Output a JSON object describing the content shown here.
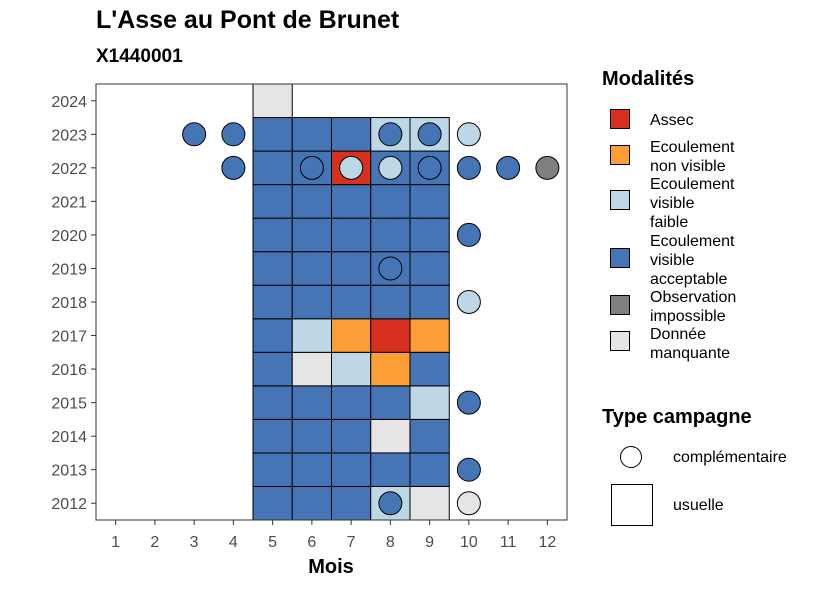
{
  "title": "L'Asse au Pont de Brunet",
  "subtitle": "X1440001",
  "legend": {
    "modalites_title": "Modalités",
    "modalites": [
      {
        "key": "assec",
        "label": "Assec",
        "color": "#d7301f"
      },
      {
        "key": "nonvisible",
        "label": "Ecoulement\nnon visible",
        "color": "#fd9d35"
      },
      {
        "key": "faible",
        "label": "Ecoulement\nvisible\nfaible",
        "color": "#bdd7e7"
      },
      {
        "key": "acceptable",
        "label": "Ecoulement\nvisible\nacceptable",
        "color": "#4575b4"
      },
      {
        "key": "impossible",
        "label": "Observation\nimpossible",
        "color": "#7f7f7f"
      },
      {
        "key": "manquante",
        "label": "Donnée\nmanquante",
        "color": "#e5e5e5"
      }
    ],
    "type_title": "Type campagne",
    "types": [
      {
        "key": "complementaire",
        "label": "complémentaire"
      },
      {
        "key": "usuelle",
        "label": "usuelle"
      }
    ]
  },
  "chart_data": {
    "type": "heatmap",
    "title": "L'Asse au Pont de Brunet",
    "subtitle": "X1440001",
    "xlabel": "Mois",
    "ylabel": "",
    "x_ticks": [
      1,
      2,
      3,
      4,
      5,
      6,
      7,
      8,
      9,
      10,
      11,
      12
    ],
    "y_ticks": [
      2012,
      2013,
      2014,
      2015,
      2016,
      2017,
      2018,
      2019,
      2020,
      2021,
      2022,
      2023,
      2024
    ],
    "xlim": [
      0.5,
      12.5
    ],
    "ylim": [
      2011.5,
      2024.5
    ],
    "grid": false,
    "usuelle": [
      {
        "year": 2012,
        "month": 5,
        "modalite": "acceptable"
      },
      {
        "year": 2012,
        "month": 6,
        "modalite": "acceptable"
      },
      {
        "year": 2012,
        "month": 7,
        "modalite": "acceptable"
      },
      {
        "year": 2012,
        "month": 8,
        "modalite": "faible"
      },
      {
        "year": 2012,
        "month": 9,
        "modalite": "manquante"
      },
      {
        "year": 2013,
        "month": 5,
        "modalite": "acceptable"
      },
      {
        "year": 2013,
        "month": 6,
        "modalite": "acceptable"
      },
      {
        "year": 2013,
        "month": 7,
        "modalite": "acceptable"
      },
      {
        "year": 2013,
        "month": 8,
        "modalite": "acceptable"
      },
      {
        "year": 2013,
        "month": 9,
        "modalite": "acceptable"
      },
      {
        "year": 2014,
        "month": 5,
        "modalite": "acceptable"
      },
      {
        "year": 2014,
        "month": 6,
        "modalite": "acceptable"
      },
      {
        "year": 2014,
        "month": 7,
        "modalite": "acceptable"
      },
      {
        "year": 2014,
        "month": 8,
        "modalite": "manquante"
      },
      {
        "year": 2014,
        "month": 9,
        "modalite": "acceptable"
      },
      {
        "year": 2015,
        "month": 5,
        "modalite": "acceptable"
      },
      {
        "year": 2015,
        "month": 6,
        "modalite": "acceptable"
      },
      {
        "year": 2015,
        "month": 7,
        "modalite": "acceptable"
      },
      {
        "year": 2015,
        "month": 8,
        "modalite": "acceptable"
      },
      {
        "year": 2015,
        "month": 9,
        "modalite": "faible"
      },
      {
        "year": 2016,
        "month": 5,
        "modalite": "acceptable"
      },
      {
        "year": 2016,
        "month": 6,
        "modalite": "manquante"
      },
      {
        "year": 2016,
        "month": 7,
        "modalite": "faible"
      },
      {
        "year": 2016,
        "month": 8,
        "modalite": "nonvisible"
      },
      {
        "year": 2016,
        "month": 9,
        "modalite": "acceptable"
      },
      {
        "year": 2017,
        "month": 5,
        "modalite": "acceptable"
      },
      {
        "year": 2017,
        "month": 6,
        "modalite": "faible"
      },
      {
        "year": 2017,
        "month": 7,
        "modalite": "nonvisible"
      },
      {
        "year": 2017,
        "month": 8,
        "modalite": "assec"
      },
      {
        "year": 2017,
        "month": 9,
        "modalite": "nonvisible"
      },
      {
        "year": 2018,
        "month": 5,
        "modalite": "acceptable"
      },
      {
        "year": 2018,
        "month": 6,
        "modalite": "acceptable"
      },
      {
        "year": 2018,
        "month": 7,
        "modalite": "acceptable"
      },
      {
        "year": 2018,
        "month": 8,
        "modalite": "acceptable"
      },
      {
        "year": 2018,
        "month": 9,
        "modalite": "acceptable"
      },
      {
        "year": 2019,
        "month": 5,
        "modalite": "acceptable"
      },
      {
        "year": 2019,
        "month": 6,
        "modalite": "acceptable"
      },
      {
        "year": 2019,
        "month": 7,
        "modalite": "acceptable"
      },
      {
        "year": 2019,
        "month": 8,
        "modalite": "acceptable"
      },
      {
        "year": 2019,
        "month": 9,
        "modalite": "acceptable"
      },
      {
        "year": 2020,
        "month": 5,
        "modalite": "acceptable"
      },
      {
        "year": 2020,
        "month": 6,
        "modalite": "acceptable"
      },
      {
        "year": 2020,
        "month": 7,
        "modalite": "acceptable"
      },
      {
        "year": 2020,
        "month": 8,
        "modalite": "acceptable"
      },
      {
        "year": 2020,
        "month": 9,
        "modalite": "acceptable"
      },
      {
        "year": 2021,
        "month": 5,
        "modalite": "acceptable"
      },
      {
        "year": 2021,
        "month": 6,
        "modalite": "acceptable"
      },
      {
        "year": 2021,
        "month": 7,
        "modalite": "acceptable"
      },
      {
        "year": 2021,
        "month": 8,
        "modalite": "acceptable"
      },
      {
        "year": 2021,
        "month": 9,
        "modalite": "acceptable"
      },
      {
        "year": 2022,
        "month": 5,
        "modalite": "acceptable"
      },
      {
        "year": 2022,
        "month": 6,
        "modalite": "acceptable"
      },
      {
        "year": 2022,
        "month": 7,
        "modalite": "assec"
      },
      {
        "year": 2022,
        "month": 8,
        "modalite": "acceptable"
      },
      {
        "year": 2022,
        "month": 9,
        "modalite": "acceptable"
      },
      {
        "year": 2023,
        "month": 5,
        "modalite": "acceptable"
      },
      {
        "year": 2023,
        "month": 6,
        "modalite": "acceptable"
      },
      {
        "year": 2023,
        "month": 7,
        "modalite": "acceptable"
      },
      {
        "year": 2023,
        "month": 8,
        "modalite": "faible"
      },
      {
        "year": 2023,
        "month": 9,
        "modalite": "faible"
      },
      {
        "year": 2024,
        "month": 5,
        "modalite": "manquante"
      }
    ],
    "complementaire": [
      {
        "year": 2012,
        "month": 8,
        "modalite": "acceptable"
      },
      {
        "year": 2012,
        "month": 10,
        "modalite": "manquante"
      },
      {
        "year": 2013,
        "month": 10,
        "modalite": "acceptable"
      },
      {
        "year": 2015,
        "month": 10,
        "modalite": "acceptable"
      },
      {
        "year": 2018,
        "month": 10,
        "modalite": "faible"
      },
      {
        "year": 2019,
        "month": 8,
        "modalite": "acceptable"
      },
      {
        "year": 2020,
        "month": 10,
        "modalite": "acceptable"
      },
      {
        "year": 2022,
        "month": 4,
        "modalite": "acceptable"
      },
      {
        "year": 2022,
        "month": 6,
        "modalite": "acceptable"
      },
      {
        "year": 2022,
        "month": 7,
        "modalite": "faible"
      },
      {
        "year": 2022,
        "month": 8,
        "modalite": "faible"
      },
      {
        "year": 2022,
        "month": 9,
        "modalite": "acceptable"
      },
      {
        "year": 2022,
        "month": 10,
        "modalite": "acceptable"
      },
      {
        "year": 2022,
        "month": 11,
        "modalite": "acceptable"
      },
      {
        "year": 2022,
        "month": 12,
        "modalite": "impossible"
      },
      {
        "year": 2023,
        "month": 3,
        "modalite": "acceptable"
      },
      {
        "year": 2023,
        "month": 4,
        "modalite": "acceptable"
      },
      {
        "year": 2023,
        "month": 8,
        "modalite": "acceptable"
      },
      {
        "year": 2023,
        "month": 9,
        "modalite": "acceptable"
      },
      {
        "year": 2023,
        "month": 10,
        "modalite": "faible"
      }
    ]
  }
}
